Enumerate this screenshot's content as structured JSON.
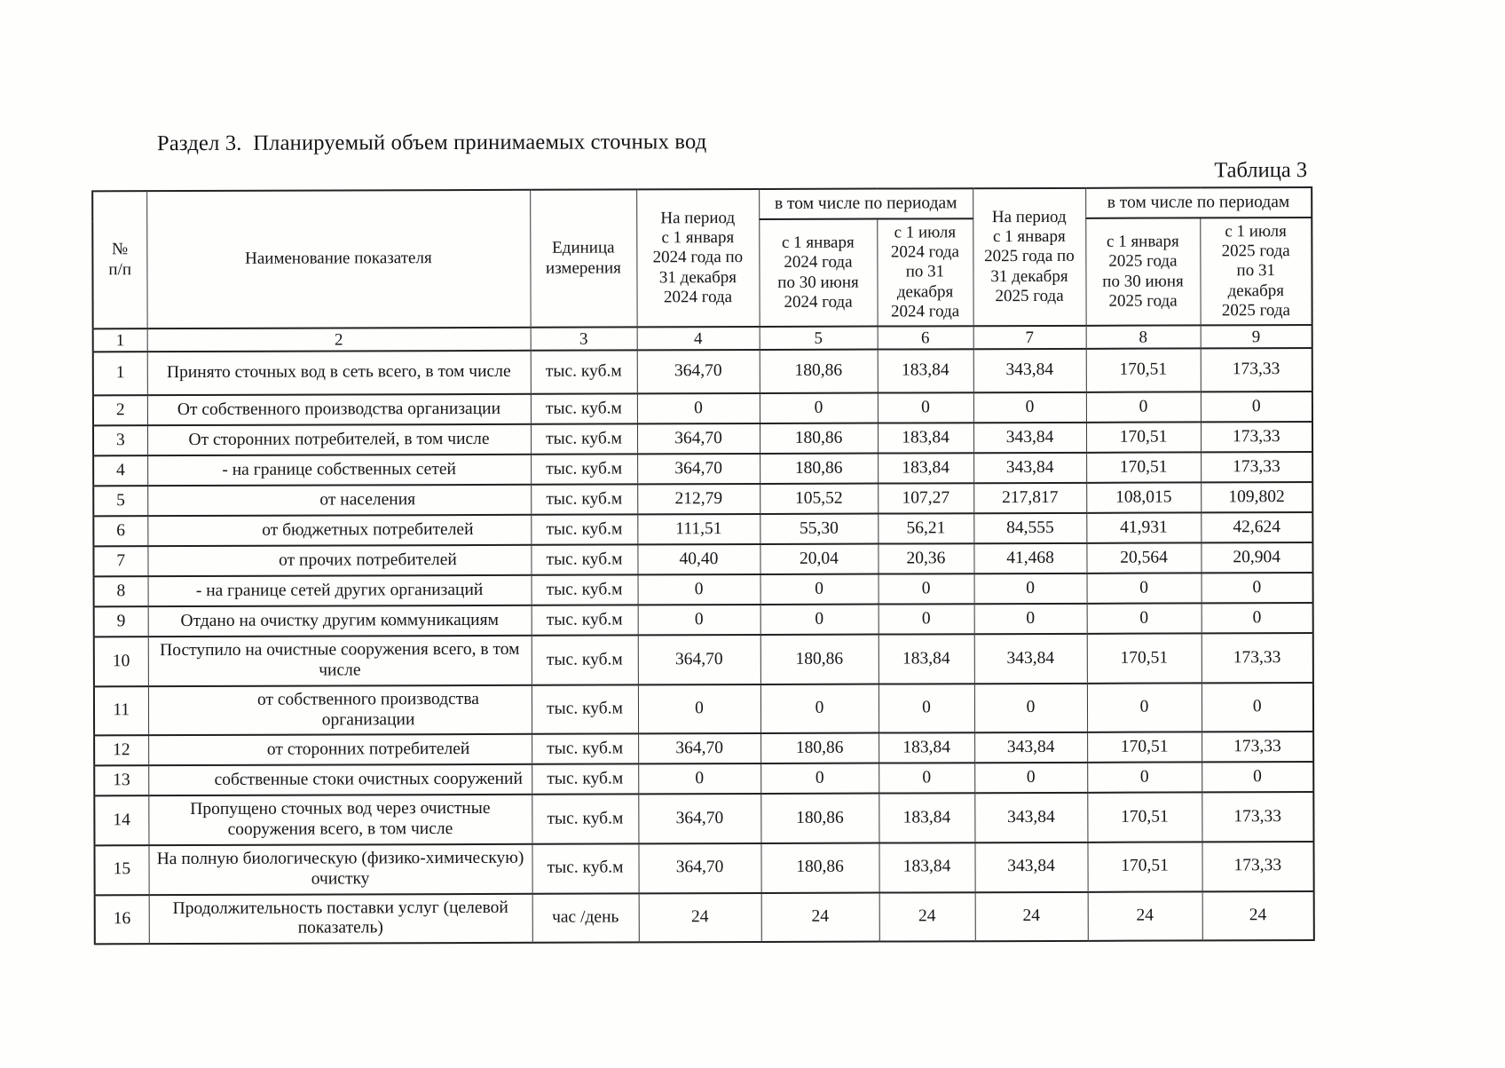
{
  "page": {
    "section_title": "Раздел 3.  Планируемый объем принимаемых сточных вод",
    "table_caption": "Таблица 3"
  },
  "table": {
    "headers": {
      "num": "№\nп/п",
      "indicator": "Наименование показателя",
      "unit": "Единица\nизмерения",
      "period_2024": "На период\nс 1 января\n2024 года по\n31 декабря\n2024 года",
      "including_2024": "в том числе по периодам",
      "half1_2024": "с 1 января\n2024 года\nпо 30 июня\n2024 года",
      "half2_2024": "с 1 июля\n2024 года\nпо 31\nдекабря\n2024 года",
      "period_2025": "На период\nс 1 января\n2025 года по\n31 декабря\n2025 года",
      "including_2025": "в том числе по периодам",
      "half1_2025": "с 1 января\n2025 года\nпо 30 июня\n2025 года",
      "half2_2025": "с 1 июля\n2025 года\nпо 31\nдекабря\n2025 года",
      "col_numbers": [
        "1",
        "2",
        "3",
        "4",
        "5",
        "6",
        "7",
        "8",
        "9"
      ]
    },
    "rows": [
      {
        "num": "1",
        "name": "Принято сточных вод в сеть всего, в том числе",
        "indent": 0,
        "tall": 1,
        "unit": "тыс. куб.м",
        "values": [
          "364,70",
          "180,86",
          "183,84",
          "343,84",
          "170,51",
          "173,33"
        ]
      },
      {
        "num": "2",
        "name": "От собственного производства организации",
        "indent": 0,
        "tall": 0,
        "unit": "тыс. куб.м",
        "values": [
          "0",
          "0",
          "0",
          "0",
          "0",
          "0"
        ]
      },
      {
        "num": "3",
        "name": "От сторонних потребителей, в том числе",
        "indent": 0,
        "tall": 0,
        "unit": "тыс. куб.м",
        "values": [
          "364,70",
          "180,86",
          "183,84",
          "343,84",
          "170,51",
          "173,33"
        ]
      },
      {
        "num": "4",
        "name": "- на границе собственных сетей",
        "indent": 0,
        "tall": 0,
        "unit": "тыс. куб.м",
        "values": [
          "364,70",
          "180,86",
          "183,84",
          "343,84",
          "170,51",
          "173,33"
        ]
      },
      {
        "num": "5",
        "name": "от населения",
        "indent": 1,
        "tall": 0,
        "unit": "тыс. куб.м",
        "values": [
          "212,79",
          "105,52",
          "107,27",
          "217,817",
          "108,015",
          "109,802"
        ]
      },
      {
        "num": "6",
        "name": "от бюджетных потребителей",
        "indent": 1,
        "tall": 0,
        "unit": "тыс. куб.м",
        "values": [
          "111,51",
          "55,30",
          "56,21",
          "84,555",
          "41,931",
          "42,624"
        ]
      },
      {
        "num": "7",
        "name": "от прочих потребителей",
        "indent": 1,
        "tall": 0,
        "unit": "тыс. куб.м",
        "values": [
          "40,40",
          "20,04",
          "20,36",
          "41,468",
          "20,564",
          "20,904"
        ]
      },
      {
        "num": "8",
        "name": "- на границе сетей других организаций",
        "indent": 0,
        "tall": 0,
        "unit": "тыс. куб.м",
        "values": [
          "0",
          "0",
          "0",
          "0",
          "0",
          "0"
        ]
      },
      {
        "num": "9",
        "name": "Отдано на очистку другим коммуникациям",
        "indent": 0,
        "tall": 0,
        "unit": "тыс. куб.м",
        "values": [
          "0",
          "0",
          "0",
          "0",
          "0",
          "0"
        ]
      },
      {
        "num": "10",
        "name": "Поступило на очистные сооружения всего, в том числе",
        "indent": 0,
        "tall": 1,
        "unit": "тыс. куб.м",
        "values": [
          "364,70",
          "180,86",
          "183,84",
          "343,84",
          "170,51",
          "173,33"
        ]
      },
      {
        "num": "11",
        "name": "от собственного производства организации",
        "indent": 1,
        "tall": 1,
        "unit": "тыс. куб.м",
        "values": [
          "0",
          "0",
          "0",
          "0",
          "0",
          "0"
        ]
      },
      {
        "num": "12",
        "name": "от сторонних потребителей",
        "indent": 1,
        "tall": 0,
        "unit": "тыс. куб.м",
        "values": [
          "364,70",
          "180,86",
          "183,84",
          "343,84",
          "170,51",
          "173,33"
        ]
      },
      {
        "num": "13",
        "name": "собственные стоки очистных сооружений",
        "indent": 1,
        "tall": 0,
        "unit": "тыс. куб.м",
        "values": [
          "0",
          "0",
          "0",
          "0",
          "0",
          "0"
        ]
      },
      {
        "num": "14",
        "name": "Пропущено сточных вод через очистные сооружения всего, в том числе",
        "indent": 0,
        "tall": 1,
        "unit": "тыс. куб.м",
        "values": [
          "364,70",
          "180,86",
          "183,84",
          "343,84",
          "170,51",
          "173,33"
        ]
      },
      {
        "num": "15",
        "name": "На полную биологическую (физико-химическую) очистку",
        "indent": 0,
        "tall": 1,
        "unit": "тыс. куб.м",
        "values": [
          "364,70",
          "180,86",
          "183,84",
          "343,84",
          "170,51",
          "173,33"
        ]
      },
      {
        "num": "16",
        "name": "Продолжительность поставки услуг (целевой показатель)",
        "indent": 0,
        "tall": 1,
        "unit": "час /день",
        "values": [
          "24",
          "24",
          "24",
          "24",
          "24",
          "24"
        ]
      }
    ]
  }
}
